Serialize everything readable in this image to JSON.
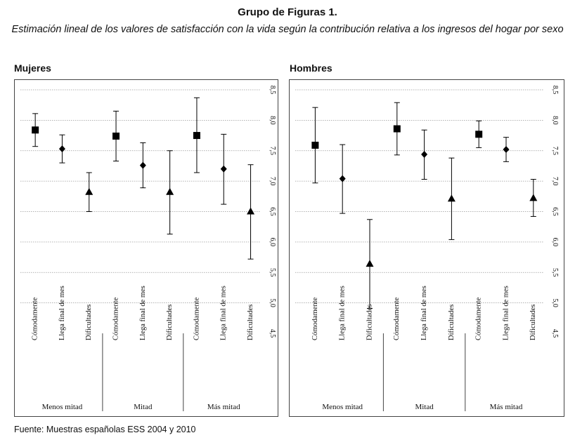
{
  "header": {
    "title": "Grupo de Figuras 1.",
    "subtitle": "Estimación lineal de los valores de satisfacción con la vida según la contribución relativa a los ingresos del hogar por sexo"
  },
  "source": "Fuente: Muestras españolas ESS 2004 y 2010",
  "chart_data": [
    {
      "type": "scatter",
      "panel": "Mujeres",
      "title": "Mujeres",
      "ylim": [
        4.5,
        8.5
      ],
      "yticks": [
        "4,5",
        "5,0",
        "5,5",
        "6,0",
        "6,5",
        "7,0",
        "7,5",
        "8,0",
        "8,5"
      ],
      "groups": [
        "Menos mitad",
        "Mitad",
        "Más mitad"
      ],
      "categories": [
        "Cómodamente",
        "Llega final de mes",
        "Dificultades"
      ],
      "markers": [
        "square",
        "diamond",
        "triangle"
      ],
      "points": [
        {
          "group": "Menos mitad",
          "category": "Cómodamente",
          "y": 7.84,
          "low": 7.57,
          "high": 8.11
        },
        {
          "group": "Menos mitad",
          "category": "Llega final de mes",
          "y": 7.53,
          "low": 7.3,
          "high": 7.76
        },
        {
          "group": "Menos mitad",
          "category": "Dificultades",
          "y": 6.82,
          "low": 6.5,
          "high": 7.14
        },
        {
          "group": "Mitad",
          "category": "Cómodamente",
          "y": 7.74,
          "low": 7.33,
          "high": 8.15
        },
        {
          "group": "Mitad",
          "category": "Llega final de mes",
          "y": 7.26,
          "low": 6.89,
          "high": 7.63
        },
        {
          "group": "Mitad",
          "category": "Dificultades",
          "y": 6.82,
          "low": 6.13,
          "high": 7.5
        },
        {
          "group": "Más mitad",
          "category": "Cómodamente",
          "y": 7.75,
          "low": 7.14,
          "high": 8.37
        },
        {
          "group": "Más mitad",
          "category": "Llega final de mes",
          "y": 7.2,
          "low": 6.62,
          "high": 7.77
        },
        {
          "group": "Más mitad",
          "category": "Dificultades",
          "y": 6.5,
          "low": 5.72,
          "high": 7.27
        }
      ]
    },
    {
      "type": "scatter",
      "panel": "Hombres",
      "title": "Hombres",
      "ylim": [
        4.5,
        8.5
      ],
      "yticks": [
        "4,5",
        "5,0",
        "5,5",
        "6,0",
        "6,5",
        "7,0",
        "7,5",
        "8,0",
        "8,5"
      ],
      "groups": [
        "Menos mitad",
        "Mitad",
        "Más mitad"
      ],
      "categories": [
        "Cómodamente",
        "Llega final de mes",
        "Dificultades"
      ],
      "markers": [
        "square",
        "diamond",
        "triangle"
      ],
      "points": [
        {
          "group": "Menos mitad",
          "category": "Cómodamente",
          "y": 7.59,
          "low": 6.97,
          "high": 8.21
        },
        {
          "group": "Menos mitad",
          "category": "Llega final de mes",
          "y": 7.04,
          "low": 6.47,
          "high": 7.6
        },
        {
          "group": "Menos mitad",
          "category": "Dificultades",
          "y": 5.64,
          "low": 4.91,
          "high": 6.37
        },
        {
          "group": "Mitad",
          "category": "Cómodamente",
          "y": 7.86,
          "low": 7.43,
          "high": 8.29
        },
        {
          "group": "Mitad",
          "category": "Llega final de mes",
          "y": 7.44,
          "low": 7.03,
          "high": 7.84
        },
        {
          "group": "Mitad",
          "category": "Dificultades",
          "y": 6.71,
          "low": 6.04,
          "high": 7.38
        },
        {
          "group": "Más mitad",
          "category": "Cómodamente",
          "y": 7.77,
          "low": 7.55,
          "high": 7.99
        },
        {
          "group": "Más mitad",
          "category": "Llega final de mes",
          "y": 7.52,
          "low": 7.32,
          "high": 7.72
        },
        {
          "group": "Más mitad",
          "category": "Dificultades",
          "y": 6.72,
          "low": 6.42,
          "high": 7.03
        }
      ]
    }
  ]
}
